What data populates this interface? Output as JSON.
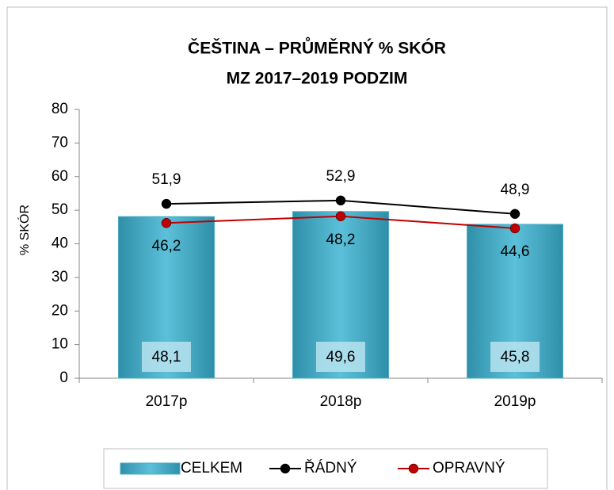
{
  "chart_data": {
    "type": "bar",
    "title": "ČEŠTINA – PRŮMĚRNÝ % SKÓR",
    "subtitle": "MZ 2017–2019 PODZIM",
    "y_label": "% SKÓR",
    "categories": [
      "2017p",
      "2018p",
      "2019p"
    ],
    "series": [
      {
        "name": "CELKEM",
        "type": "bar",
        "color": "#4bacc6",
        "values": [
          48.1,
          49.6,
          45.8
        ],
        "value_labels": [
          "48,1",
          "49,6",
          "45,8"
        ]
      },
      {
        "name": "ŘÁDNÝ",
        "type": "line",
        "color": "#000000",
        "values": [
          51.9,
          52.9,
          48.9
        ],
        "value_labels": [
          "51,9",
          "52,9",
          "48,9"
        ]
      },
      {
        "name": "OPRAVNÝ",
        "type": "line",
        "color": "#c00000",
        "values": [
          46.2,
          48.2,
          44.6
        ],
        "value_labels": [
          "46,2",
          "48,2",
          "44,6"
        ]
      }
    ],
    "ylim": [
      0,
      80
    ],
    "yticks": [
      0,
      10,
      20,
      30,
      40,
      50,
      60,
      70,
      80
    ],
    "grid": false,
    "legend": "bottom"
  }
}
